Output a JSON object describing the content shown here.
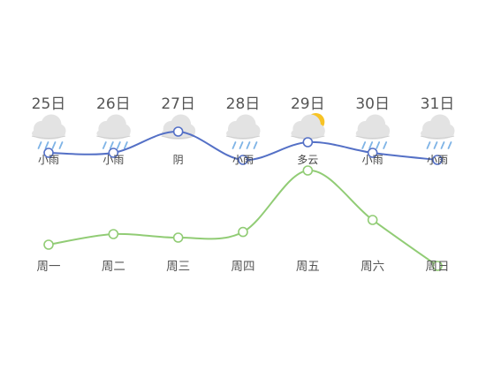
{
  "chart_data": {
    "type": "line",
    "categories": [
      "周一",
      "周二",
      "周三",
      "周四",
      "周五",
      "周六",
      "周日"
    ],
    "dates": [
      "25日",
      "26日",
      "27日",
      "28日",
      "29日",
      "30日",
      "31日"
    ],
    "weather": [
      {
        "text": "小雨",
        "icon": "light-rain-icon"
      },
      {
        "text": "小雨",
        "icon": "light-rain-icon"
      },
      {
        "text": "阴",
        "icon": "overcast-icon"
      },
      {
        "text": "小雨",
        "icon": "light-rain-icon"
      },
      {
        "text": "多云",
        "icon": "partly-cloudy-icon"
      },
      {
        "text": "小雨",
        "icon": "light-rain-icon"
      },
      {
        "text": "小雨",
        "icon": "light-rain-icon"
      }
    ],
    "series": [
      {
        "color": "#5470c6",
        "values": [
          17,
          17,
          20,
          16,
          18.5,
          17,
          16
        ]
      },
      {
        "color": "#91cc75",
        "values": [
          4,
          5.5,
          5,
          5.8,
          14.5,
          7.5,
          1
        ]
      }
    ],
    "ylim": [
      -2,
      28
    ],
    "grid": false,
    "legend": "none"
  },
  "colors": {
    "cloud": "#e3e3e3",
    "cloud_edge": "#cfcfcf",
    "rain": "#7fb4e6",
    "sun": "#f7c325",
    "text": "#555555"
  }
}
